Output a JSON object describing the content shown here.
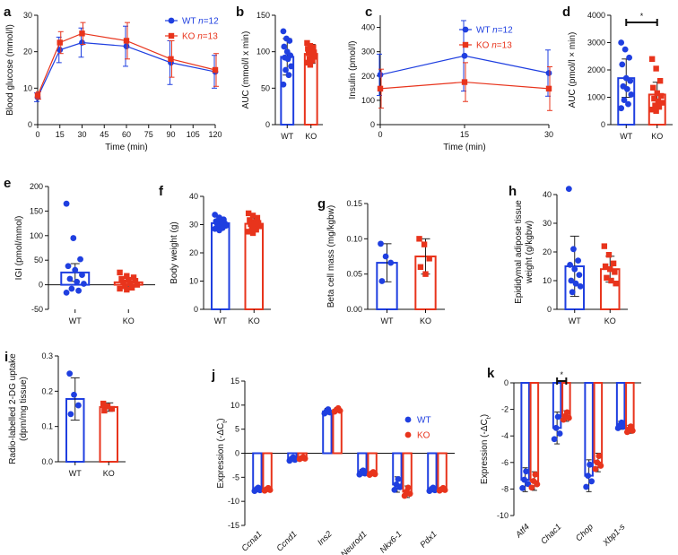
{
  "chart_data": [
    {
      "id": "a",
      "label": "a",
      "type": "line",
      "xlabel": "Time (min)",
      "ylabel": "Blood glucose (mmol/l)",
      "x": [
        0,
        15,
        30,
        60,
        90,
        120
      ],
      "xticks": [
        "0",
        "15",
        "30",
        "45",
        "60",
        "75",
        "90",
        "105",
        "120"
      ],
      "yticks": [
        "0",
        "10",
        "20",
        "30"
      ],
      "xlim": [
        0,
        120
      ],
      "ylim": [
        0,
        30
      ],
      "legend": [
        "WT n=12",
        "KO n=13"
      ],
      "series": [
        {
          "name": "WT",
          "color": "#1f3fe0",
          "marker": "circle",
          "values": [
            7.5,
            20.5,
            22.5,
            21.5,
            17,
            14.5
          ],
          "err": [
            1.2,
            3.5,
            4,
            5.5,
            6,
            4.5
          ]
        },
        {
          "name": "KO",
          "color": "#e8341c",
          "marker": "square",
          "values": [
            8,
            22.5,
            25,
            23,
            18,
            15
          ],
          "err": [
            1,
            3,
            3,
            5,
            5,
            4.5
          ]
        }
      ]
    },
    {
      "id": "b",
      "label": "b",
      "type": "bar",
      "ylabel": "AUC (mmol/l x min)",
      "categories": [
        "WT",
        "KO"
      ],
      "yticks": [
        "0",
        "50",
        "100",
        "150"
      ],
      "ylim": [
        0,
        150
      ],
      "series": [
        {
          "name": "WT",
          "color": "#1f3fe0",
          "mean": 93,
          "sd": 25,
          "points": [
            128,
            118,
            115,
            107,
            100,
            95,
            92,
            90,
            80,
            75,
            68,
            55
          ]
        },
        {
          "name": "KO",
          "color": "#e8341c",
          "mean": 97,
          "sd": 13,
          "points": [
            112,
            108,
            106,
            104,
            101,
            99,
            98,
            96,
            93,
            90,
            88,
            85,
            82
          ]
        }
      ]
    },
    {
      "id": "c",
      "label": "c",
      "type": "line",
      "xlabel": "Time (min)",
      "ylabel": "Insulin (pmol/l)",
      "x": [
        0,
        15,
        30
      ],
      "xticks": [
        "0",
        "15",
        "30"
      ],
      "yticks": [
        "0",
        "100",
        "200",
        "300",
        "400"
      ],
      "xlim": [
        0,
        30
      ],
      "ylim": [
        0,
        450
      ],
      "legend": [
        "WT n=12",
        "KO n=13"
      ],
      "series": [
        {
          "name": "WT",
          "color": "#1f3fe0",
          "marker": "circle",
          "values": [
            205,
            283,
            212
          ],
          "err": [
            85,
            145,
            95
          ]
        },
        {
          "name": "KO",
          "color": "#e8341c",
          "marker": "square",
          "values": [
            148,
            175,
            148
          ],
          "err": [
            80,
            80,
            90
          ]
        }
      ]
    },
    {
      "id": "d",
      "label": "d",
      "type": "bar",
      "ylabel": "AUC (pmol/l × min)",
      "categories": [
        "WT",
        "KO"
      ],
      "yticks": [
        "0",
        "1000",
        "2000",
        "3000",
        "4000"
      ],
      "ylim": [
        0,
        4000
      ],
      "significance": "*",
      "series": [
        {
          "name": "WT",
          "color": "#1f3fe0",
          "mean": 1700,
          "sd": 700,
          "points": [
            3000,
            2750,
            2450,
            2200,
            1700,
            1600,
            1400,
            1300,
            1100,
            900,
            750,
            600
          ]
        },
        {
          "name": "KO",
          "color": "#e8341c",
          "mean": 1100,
          "sd": 450,
          "points": [
            2400,
            2050,
            1600,
            1350,
            1150,
            1050,
            950,
            850,
            800,
            700,
            650,
            550,
            500
          ]
        }
      ]
    },
    {
      "id": "e",
      "label": "e",
      "type": "bar",
      "ylabel": "IGI (pmol/mmol)",
      "categories": [
        "WT",
        "KO"
      ],
      "yticks": [
        "-50",
        "0",
        "50",
        "100",
        "150",
        "200"
      ],
      "ylim": [
        -50,
        200
      ],
      "series": [
        {
          "name": "WT",
          "color": "#1f3fe0",
          "mean": 25,
          "sd": 18,
          "points": [
            165,
            95,
            52,
            38,
            30,
            20,
            12,
            6,
            2,
            -8,
            -12,
            -16
          ]
        },
        {
          "name": "KO",
          "color": "#e8341c",
          "mean": 5,
          "sd": 8,
          "points": [
            25,
            18,
            15,
            12,
            10,
            8,
            5,
            3,
            0,
            -3,
            -6,
            -8,
            -10
          ]
        }
      ]
    },
    {
      "id": "f",
      "label": "f",
      "type": "bar",
      "ylabel": "Body weight (g)",
      "categories": [
        "WT",
        "KO"
      ],
      "yticks": [
        "0",
        "10",
        "20",
        "30",
        "40"
      ],
      "ylim": [
        0,
        40
      ],
      "series": [
        {
          "name": "WT",
          "color": "#1f3fe0",
          "mean": 30.5,
          "sd": 1.6,
          "points": [
            33.5,
            32.5,
            31.8,
            31.2,
            30.8,
            30.5,
            30.2,
            30,
            29.6,
            29.2,
            28.8,
            28.5,
            28
          ]
        },
        {
          "name": "KO",
          "color": "#e8341c",
          "mean": 30.3,
          "sd": 2,
          "points": [
            34,
            33.2,
            32.4,
            31.6,
            31,
            30.6,
            30.2,
            29.8,
            29.4,
            28.8,
            28.2,
            27.5,
            27
          ]
        }
      ]
    },
    {
      "id": "g",
      "label": "g",
      "type": "bar",
      "ylabel": "Beta cell mass (mg/kgbw)",
      "categories": [
        "WT",
        "KO"
      ],
      "yticks": [
        "0.00",
        "0.05",
        "0.10",
        "0.15"
      ],
      "ylim": [
        0,
        0.15
      ],
      "series": [
        {
          "name": "WT",
          "color": "#1f3fe0",
          "mean": 0.066,
          "sd": 0.027,
          "points": [
            0.093,
            0.075,
            0.066,
            0.04
          ]
        },
        {
          "name": "KO",
          "color": "#e8341c",
          "mean": 0.075,
          "sd": 0.025,
          "points": [
            0.1,
            0.092,
            0.072,
            0.06,
            0.05
          ]
        }
      ]
    },
    {
      "id": "h",
      "label": "h",
      "type": "bar",
      "ylabel": "Epididymal adipose tissue weight (g/kgbw)",
      "ylabel_lines": [
        "Epididymal adipose tissue",
        "weight (g/kgbw)"
      ],
      "categories": [
        "WT",
        "KO"
      ],
      "yticks": [
        "0",
        "10",
        "20",
        "30",
        "40"
      ],
      "ylim": [
        0,
        40
      ],
      "series": [
        {
          "name": "WT",
          "color": "#1f3fe0",
          "mean": 15,
          "sd": 10.5,
          "points": [
            42,
            21,
            17,
            15.5,
            14,
            12,
            10,
            9,
            8,
            6
          ]
        },
        {
          "name": "KO",
          "color": "#e8341c",
          "mean": 14,
          "sd": 4.5,
          "points": [
            22,
            19,
            16,
            15,
            14,
            13,
            11,
            10,
            9
          ]
        }
      ]
    },
    {
      "id": "i",
      "label": "i",
      "type": "bar",
      "ylabel": "Radio-labelled 2-DG uptake (dpm/mg tissue)",
      "ylabel_lines": [
        "Radio-labelled 2-DG uptake",
        "(dpm/mg tissue)"
      ],
      "categories": [
        "WT",
        "KO"
      ],
      "yticks": [
        "0.0",
        "0.1",
        "0.2",
        "0.3"
      ],
      "ylim": [
        0,
        0.3
      ],
      "series": [
        {
          "name": "WT",
          "color": "#1f3fe0",
          "mean": 0.178,
          "sd": 0.06,
          "points": [
            0.25,
            0.19,
            0.16,
            0.135
          ]
        },
        {
          "name": "KO",
          "color": "#e8341c",
          "mean": 0.155,
          "sd": 0.012,
          "points": [
            0.165,
            0.157,
            0.15,
            0.145
          ]
        }
      ]
    },
    {
      "id": "j",
      "label": "j",
      "type": "bar",
      "ylabel": "Expression (-ΔCt)",
      "categories": [
        "Ccna1",
        "Ccnd1",
        "Ins2",
        "Neurod1",
        "Nkx6-1",
        "Pdx1"
      ],
      "yticks": [
        "-15",
        "-10",
        "-5",
        "0",
        "5",
        "10",
        "15"
      ],
      "ylim": [
        -15,
        15
      ],
      "legend": [
        "WT",
        "KO"
      ],
      "series": [
        {
          "name": "WT",
          "color": "#1f3fe0",
          "values": [
            -7.5,
            -1.2,
            8.7,
            -4,
            -6.5,
            -7.5
          ],
          "sd": [
            0.5,
            0.5,
            0.6,
            0.6,
            1.6,
            0.5
          ]
        },
        {
          "name": "KO",
          "color": "#e8341c",
          "values": [
            -7.5,
            -1,
            9,
            -4.2,
            -8,
            -7.5
          ],
          "sd": [
            0.4,
            0.3,
            0.5,
            0.4,
            1.2,
            0.4
          ]
        }
      ]
    },
    {
      "id": "k",
      "label": "k",
      "type": "bar",
      "ylabel": "Expression (-ΔCt)",
      "categories": [
        "Atf4",
        "Chac1",
        "Chop",
        "Xbp1-s"
      ],
      "yticks": [
        "0",
        "-2",
        "-4",
        "-6",
        "-8",
        "-10"
      ],
      "ylim": [
        -10,
        0
      ],
      "significance": "*",
      "significance_category": "Chac1",
      "series": [
        {
          "name": "WT",
          "color": "#1f3fe0",
          "values": [
            -7.3,
            -3.4,
            -7,
            -3.2
          ],
          "sd": [
            0.9,
            1.2,
            1.2,
            0.3
          ]
        },
        {
          "name": "KO",
          "color": "#e8341c",
          "values": [
            -7.4,
            -2.5,
            -6,
            -3.5
          ],
          "sd": [
            0.7,
            0.4,
            0.7,
            0.3
          ]
        }
      ]
    }
  ]
}
